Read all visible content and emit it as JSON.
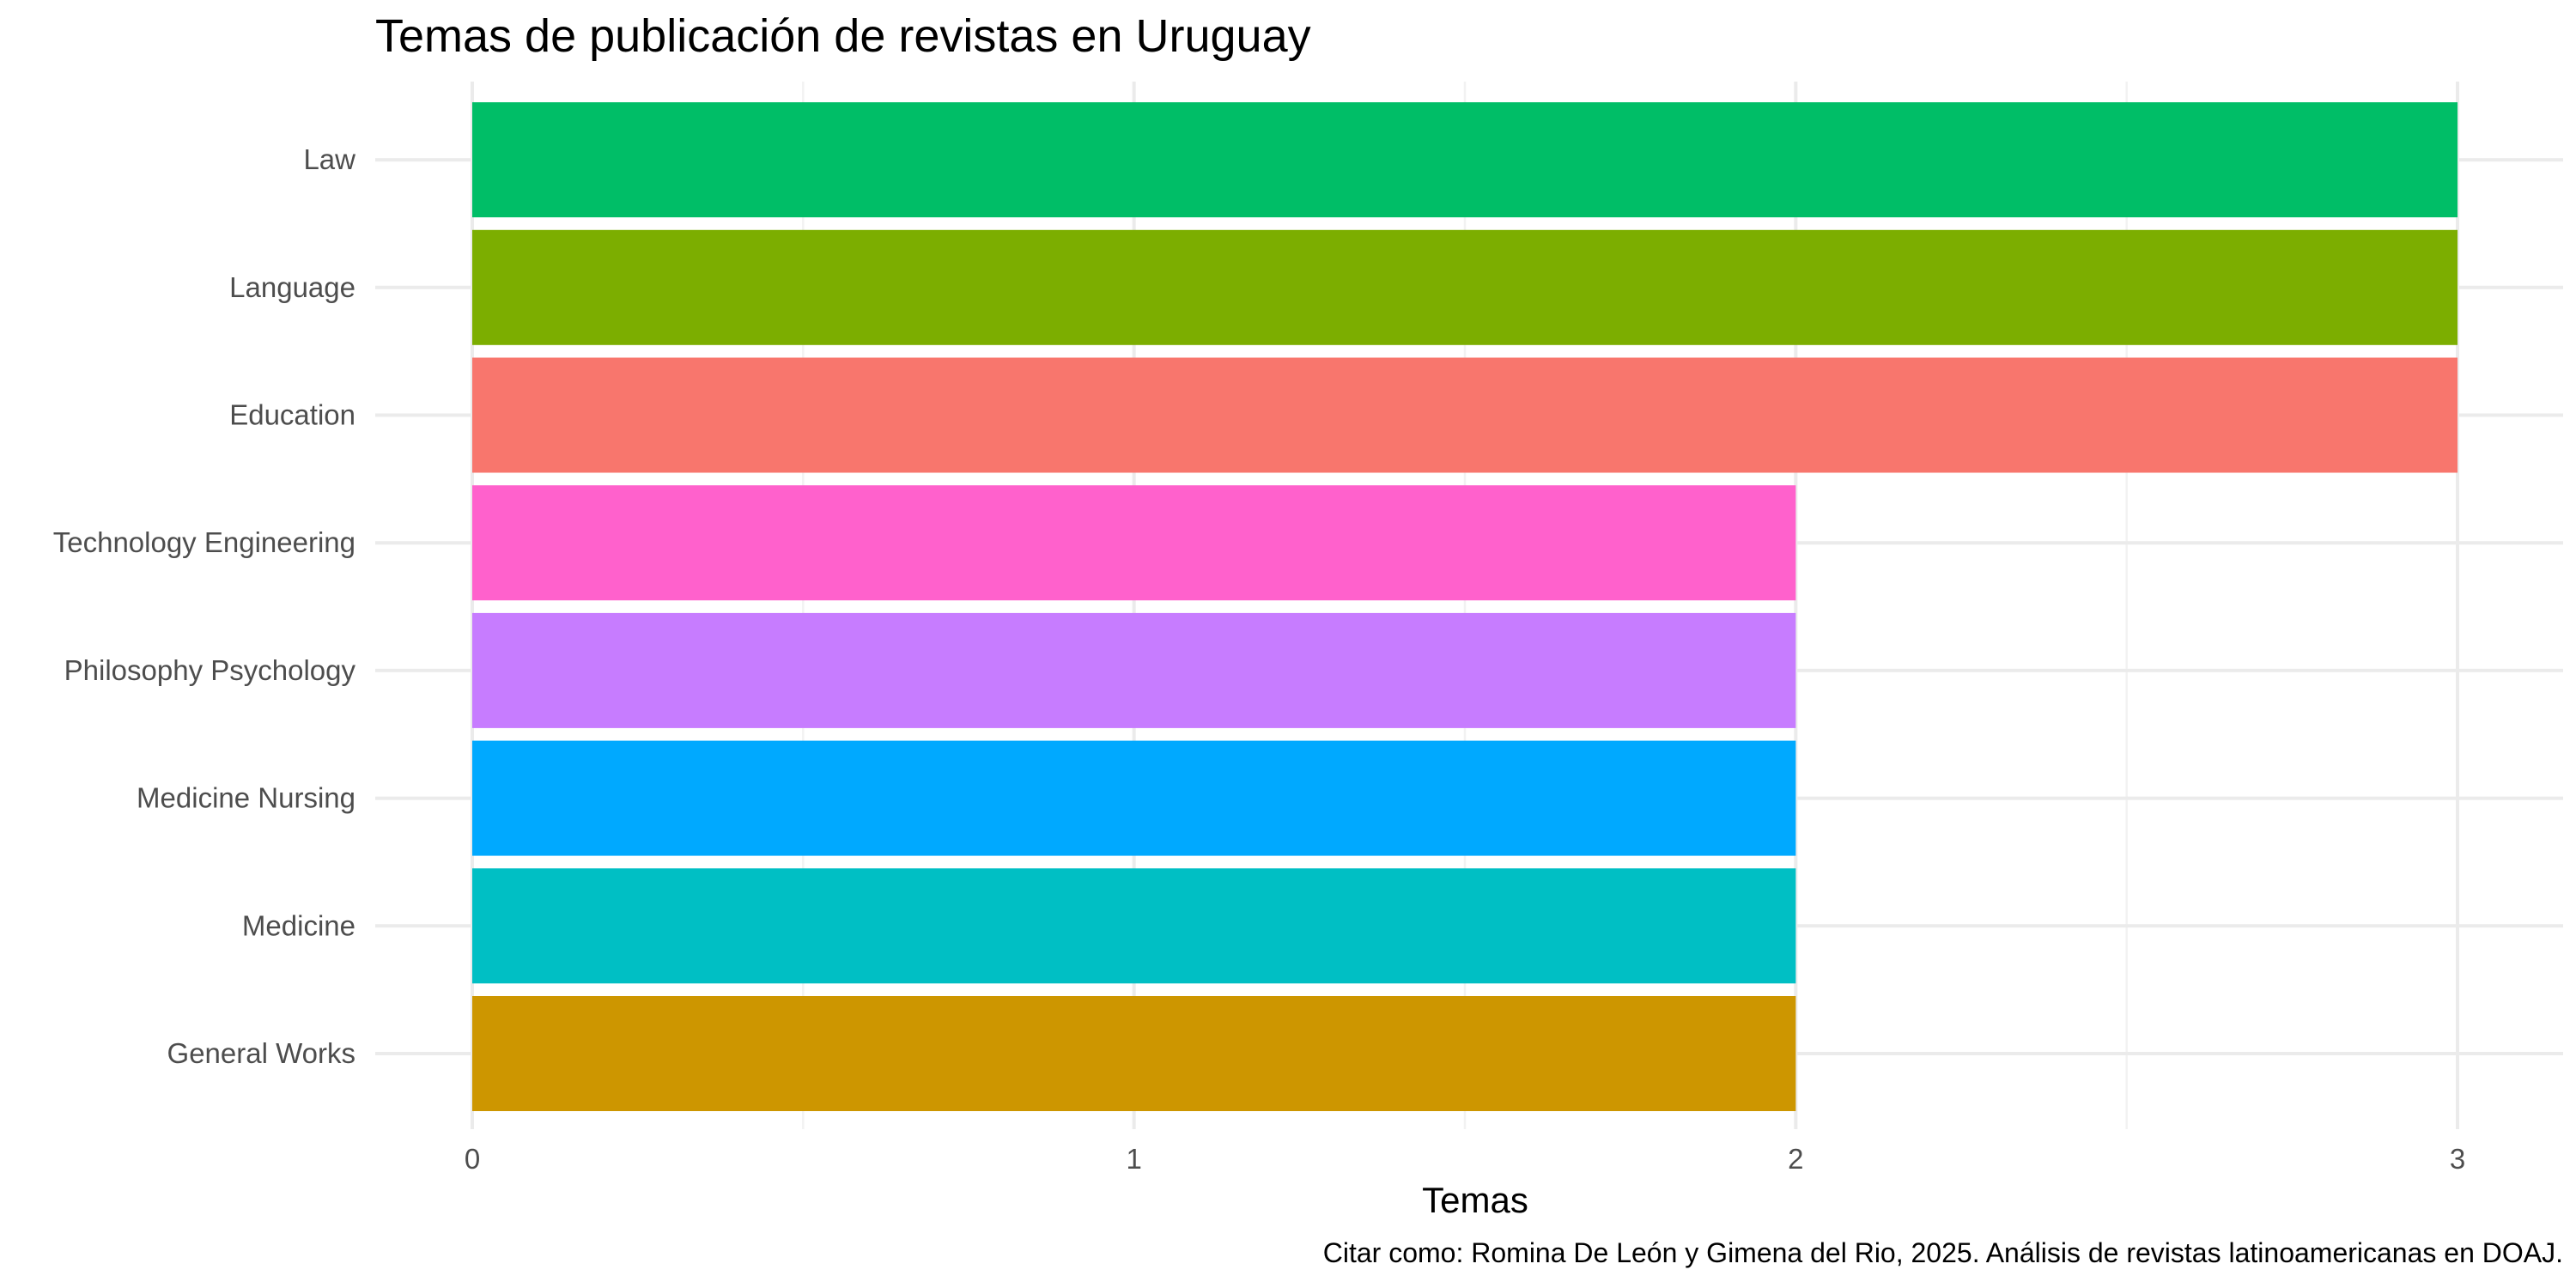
{
  "chart_data": {
    "type": "bar",
    "orientation": "horizontal",
    "title": "Temas de publicación de revistas en Uruguay",
    "xlabel": "Temas",
    "ylabel": "",
    "caption": "Citar como: Romina De León y Gimena del Rio, 2025. Análisis de revistas latinoamericanas en DOAJ.",
    "categories": [
      "General Works",
      "Medicine",
      "Medicine Nursing",
      "Philosophy Psychology",
      "Technology Engineering",
      "Education",
      "Language",
      "Law"
    ],
    "values": [
      2,
      2,
      2,
      2,
      2,
      3,
      3,
      3
    ],
    "colors": [
      "#CD9600",
      "#00BFC4",
      "#00A9FF",
      "#C77CFF",
      "#FF61CC",
      "#F8766D",
      "#7CAE00",
      "#00BE67"
    ],
    "xlim": [
      0,
      3
    ],
    "xticks": [
      0,
      1,
      2,
      3
    ],
    "grid": true,
    "legend": "none"
  }
}
